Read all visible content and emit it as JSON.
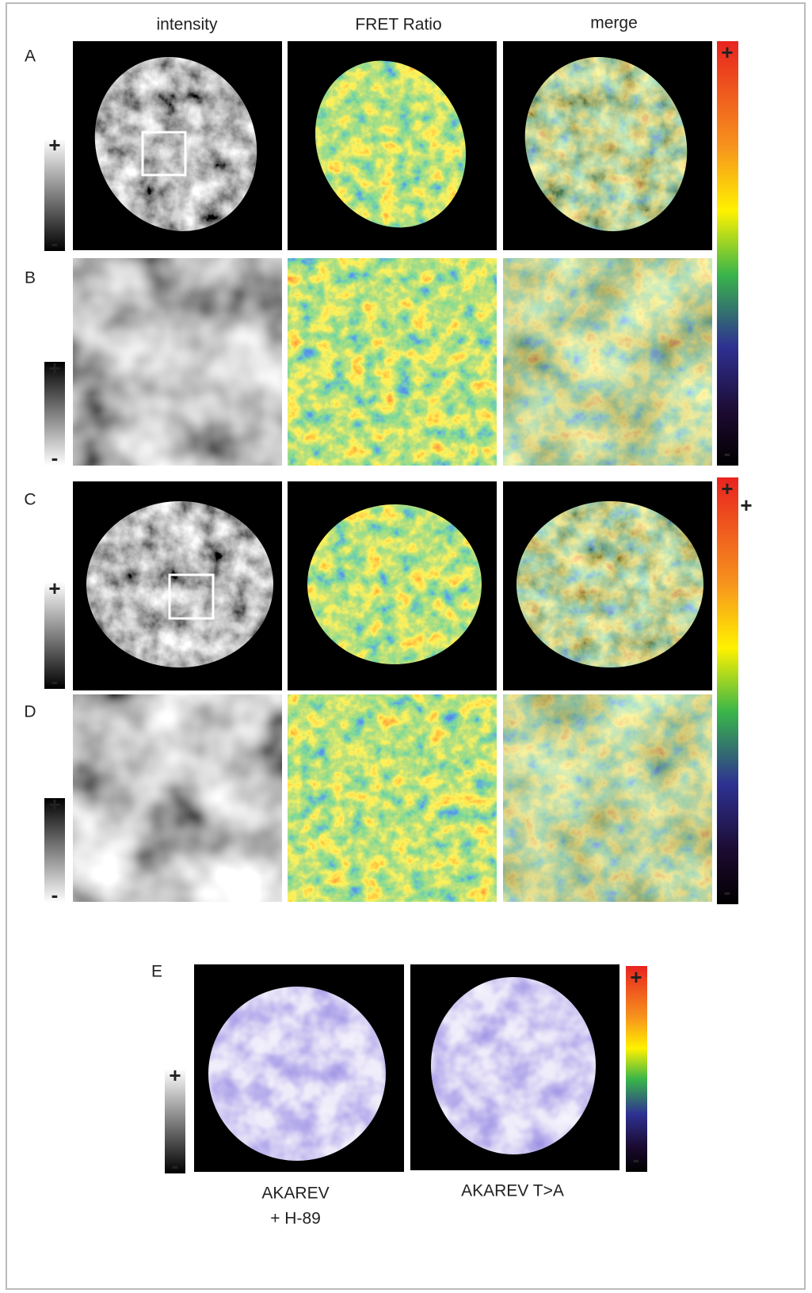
{
  "columns": [
    "intensity",
    "FRET Ratio",
    "merge"
  ],
  "rows": [
    {
      "label": "A"
    },
    {
      "label": "B"
    },
    {
      "label": "C"
    },
    {
      "label": "D"
    }
  ],
  "gray_scales": [
    {
      "plus": "+",
      "minus": "-"
    },
    {
      "plus": "+",
      "minus": "-"
    },
    {
      "plus": "+",
      "minus": "-"
    },
    {
      "plus": "+",
      "minus": "-"
    },
    {
      "plus": "+",
      "minus": "-"
    }
  ],
  "color_scales": [
    {
      "plus": "+",
      "minus": "-"
    },
    {
      "plus": "+",
      "minus": "-"
    },
    {
      "plus": "+",
      "minus": "-"
    }
  ],
  "extra_plus": "+",
  "panel_e": {
    "label": "E",
    "captions": [
      {
        "lines": [
          "AKAREV",
          "+ H-89"
        ]
      },
      {
        "lines": [
          "AKAREV T>A"
        ]
      }
    ]
  }
}
